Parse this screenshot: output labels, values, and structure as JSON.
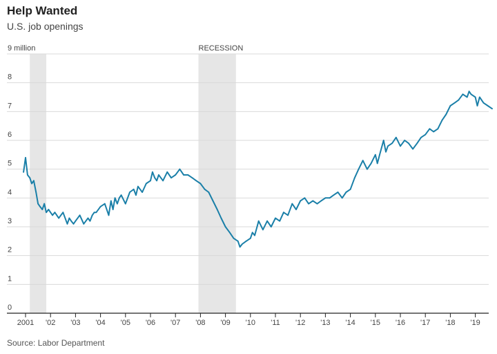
{
  "header": {
    "title": "Help Wanted",
    "subtitle": "U.S. job openings"
  },
  "source": "Source: Labor Department",
  "chart_data": {
    "type": "line",
    "title": "Help Wanted",
    "subtitle": "U.S. job openings",
    "y_unit_label": "9 million",
    "ylim": [
      0,
      9
    ],
    "y_ticks": [
      "0",
      "1",
      "2",
      "3",
      "4",
      "5",
      "6",
      "7",
      "8"
    ],
    "x_ticks": [
      "2001",
      "'02",
      "'03",
      "'04",
      "'05",
      "'06",
      "'07",
      "'08",
      "'09",
      "'10",
      "'11",
      "'12",
      "'13",
      "'14",
      "'15",
      "'16",
      "'17",
      "'18",
      "'19"
    ],
    "grid": true,
    "line_color": "#1a7fa8",
    "recessions": [
      {
        "start": 2001.17,
        "end": 2001.83,
        "label": ""
      },
      {
        "start": 2007.92,
        "end": 2009.42,
        "label": "RECESSION"
      }
    ],
    "series": [
      {
        "x": [
          2000.92,
          2001.0,
          2001.08,
          2001.17,
          2001.25,
          2001.33,
          2001.42,
          2001.5,
          2001.58,
          2001.67,
          2001.75,
          2001.83,
          2001.92,
          2002.0,
          2002.08,
          2002.17,
          2002.25,
          2002.33,
          2002.5,
          2002.67,
          2002.75,
          2002.83,
          2002.92,
          2003.0,
          2003.17,
          2003.33,
          2003.5,
          2003.58,
          2003.67,
          2003.75,
          2003.83,
          2004.0,
          2004.17,
          2004.33,
          2004.42,
          2004.5,
          2004.58,
          2004.67,
          2004.75,
          2004.83,
          2005.0,
          2005.17,
          2005.33,
          2005.42,
          2005.5,
          2005.67,
          2005.83,
          2006.0,
          2006.08,
          2006.17,
          2006.25,
          2006.33,
          2006.5,
          2006.67,
          2006.83,
          2007.0,
          2007.17,
          2007.33,
          2007.5,
          2007.67,
          2007.83,
          2008.0,
          2008.17,
          2008.33,
          2008.5,
          2008.67,
          2008.83,
          2009.0,
          2009.17,
          2009.33,
          2009.5,
          2009.58,
          2009.67,
          2009.83,
          2010.0,
          2010.08,
          2010.17,
          2010.33,
          2010.5,
          2010.67,
          2010.83,
          2011.0,
          2011.17,
          2011.33,
          2011.5,
          2011.67,
          2011.83,
          2012.0,
          2012.17,
          2012.33,
          2012.5,
          2012.67,
          2012.83,
          2013.0,
          2013.17,
          2013.33,
          2013.5,
          2013.67,
          2013.83,
          2014.0,
          2014.17,
          2014.33,
          2014.5,
          2014.67,
          2014.83,
          2015.0,
          2015.08,
          2015.17,
          2015.33,
          2015.42,
          2015.5,
          2015.67,
          2015.83,
          2016.0,
          2016.17,
          2016.33,
          2016.5,
          2016.67,
          2016.83,
          2017.0,
          2017.17,
          2017.33,
          2017.5,
          2017.67,
          2017.83,
          2018.0,
          2018.17,
          2018.33,
          2018.5,
          2018.67,
          2018.75,
          2018.83,
          2019.0,
          2019.08,
          2019.17,
          2019.33,
          2019.5,
          2019.67
        ],
        "values": [
          4.9,
          5.4,
          4.8,
          4.7,
          4.5,
          4.6,
          4.2,
          3.8,
          3.7,
          3.6,
          3.8,
          3.5,
          3.6,
          3.5,
          3.4,
          3.5,
          3.4,
          3.3,
          3.5,
          3.1,
          3.3,
          3.2,
          3.1,
          3.2,
          3.4,
          3.1,
          3.3,
          3.2,
          3.4,
          3.5,
          3.5,
          3.7,
          3.8,
          3.4,
          3.9,
          3.6,
          4.0,
          3.8,
          4.0,
          4.1,
          3.8,
          4.2,
          4.3,
          4.1,
          4.4,
          4.2,
          4.5,
          4.6,
          4.9,
          4.7,
          4.6,
          4.8,
          4.6,
          4.9,
          4.7,
          4.8,
          5.0,
          4.8,
          4.8,
          4.7,
          4.6,
          4.5,
          4.3,
          4.2,
          3.9,
          3.6,
          3.3,
          3.0,
          2.8,
          2.6,
          2.5,
          2.3,
          2.4,
          2.5,
          2.6,
          2.8,
          2.7,
          3.2,
          2.9,
          3.2,
          3.0,
          3.3,
          3.2,
          3.5,
          3.4,
          3.8,
          3.6,
          3.9,
          4.0,
          3.8,
          3.9,
          3.8,
          3.9,
          4.0,
          4.0,
          4.1,
          4.2,
          4.0,
          4.2,
          4.3,
          4.7,
          5.0,
          5.3,
          5.0,
          5.2,
          5.5,
          5.2,
          5.5,
          6.0,
          5.6,
          5.8,
          5.9,
          6.1,
          5.8,
          6.0,
          5.9,
          5.7,
          5.9,
          6.1,
          6.2,
          6.4,
          6.3,
          6.4,
          6.7,
          6.9,
          7.2,
          7.3,
          7.4,
          7.6,
          7.5,
          7.7,
          7.6,
          7.5,
          7.2,
          7.5,
          7.3,
          7.2,
          7.1
        ]
      }
    ]
  }
}
